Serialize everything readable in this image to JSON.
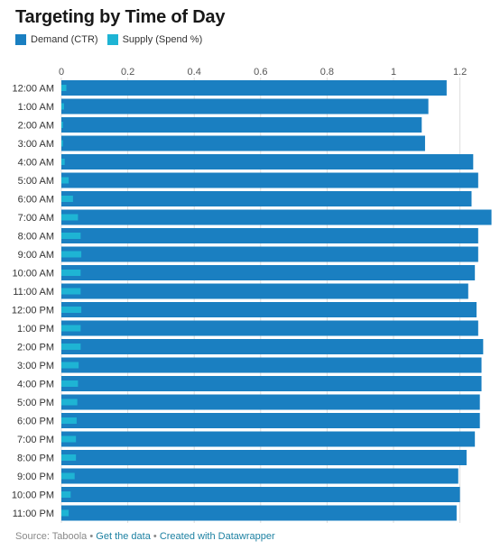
{
  "title": "Targeting by Time of Day",
  "colors": {
    "demand": "#1a7fc1",
    "supply": "#1eb4d4",
    "grid": "#dddddd"
  },
  "chart_data": {
    "type": "bar",
    "orientation": "horizontal",
    "categories": [
      "12:00 AM",
      "1:00 AM",
      "2:00 AM",
      "3:00 AM",
      "4:00 AM",
      "5:00 AM",
      "6:00 AM",
      "7:00 AM",
      "8:00 AM",
      "9:00 AM",
      "10:00 AM",
      "11:00 AM",
      "12:00 PM",
      "1:00 PM",
      "2:00 PM",
      "3:00 PM",
      "4:00 PM",
      "5:00 PM",
      "6:00 PM",
      "7:00 PM",
      "8:00 PM",
      "9:00 PM",
      "10:00 PM",
      "11:00 PM"
    ],
    "series": [
      {
        "name": "Demand (CTR)",
        "values": [
          1.16,
          1.105,
          1.085,
          1.095,
          1.24,
          1.255,
          1.235,
          1.295,
          1.255,
          1.255,
          1.245,
          1.225,
          1.25,
          1.255,
          1.27,
          1.265,
          1.265,
          1.26,
          1.26,
          1.245,
          1.22,
          1.195,
          1.2,
          1.19
        ]
      },
      {
        "name": "Supply (Spend %)",
        "values": [
          0.015,
          0.008,
          0.005,
          0.005,
          0.01,
          0.022,
          0.035,
          0.05,
          0.058,
          0.06,
          0.058,
          0.058,
          0.06,
          0.058,
          0.058,
          0.052,
          0.05,
          0.048,
          0.046,
          0.044,
          0.044,
          0.04,
          0.028,
          0.022
        ]
      }
    ],
    "xticks": [
      "0",
      "0.2",
      "0.4",
      "0.6",
      "0.8",
      "1",
      "1.2"
    ],
    "xlim": [
      0,
      1.3
    ],
    "grid": true,
    "legend_position": "top-left"
  },
  "footer": {
    "source": "Source: Taboola",
    "get_data": "Get the data",
    "created_with": "Created with Datawrapper",
    "separator": "•"
  }
}
